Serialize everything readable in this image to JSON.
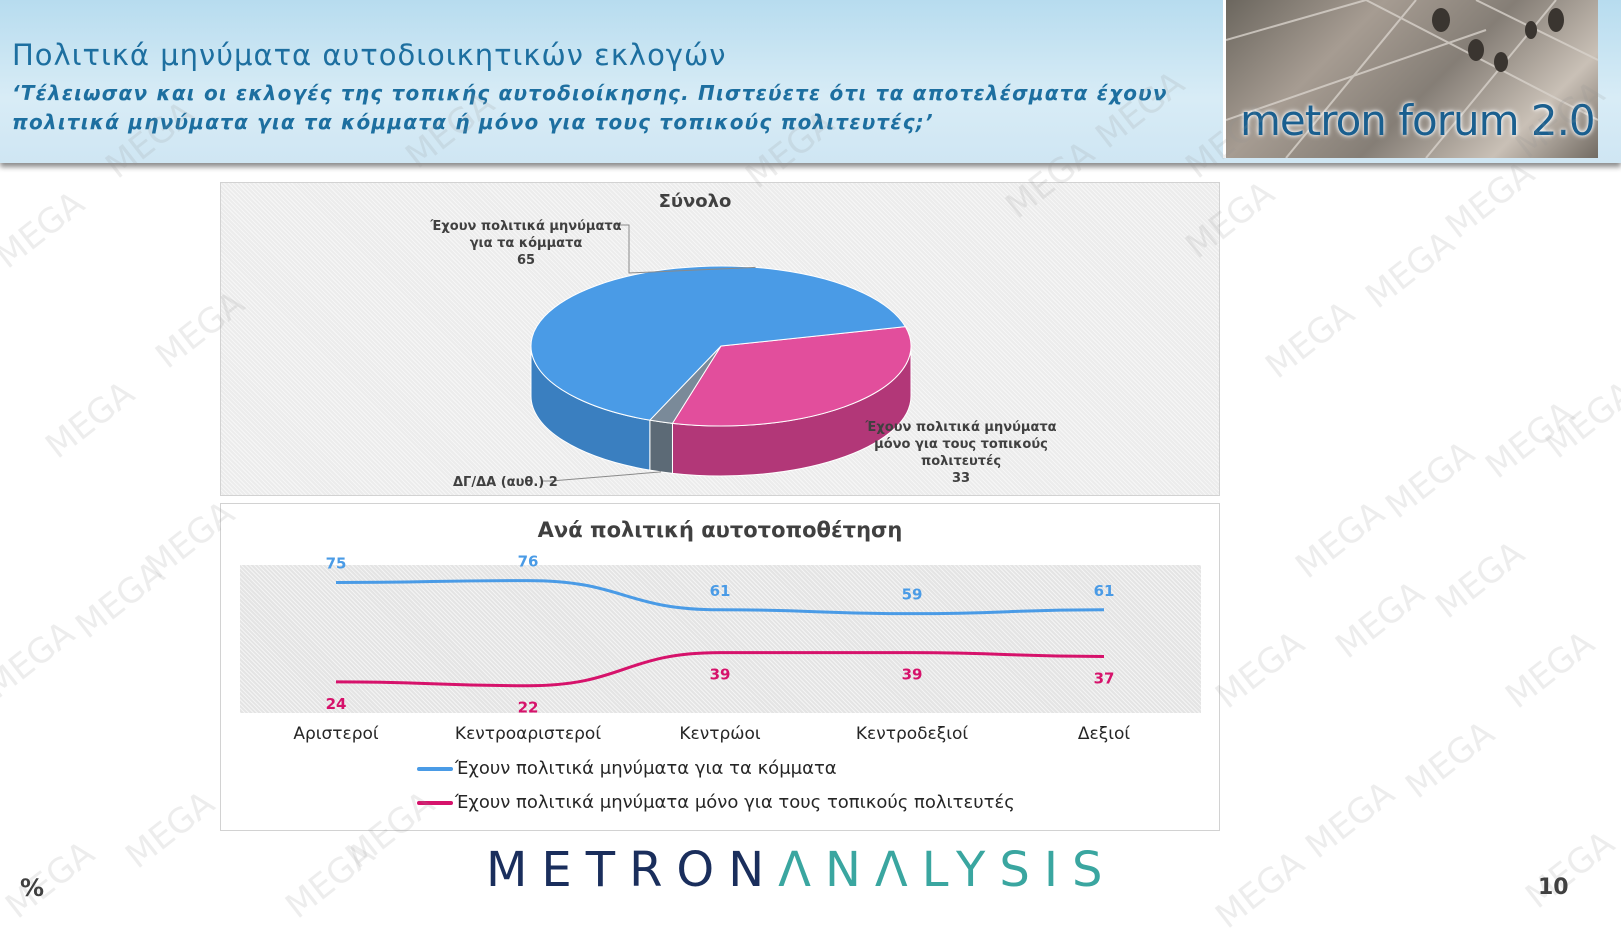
{
  "header": {
    "title": "Πολιτικά μηνύματα αυτοδιοικητικών εκλογών",
    "question": "‘Τέλειωσαν και οι εκλογές της τοπικής αυτοδιοίκησης. Πιστεύετε ότι τα αποτελέσματα έχουν πολιτικά μηνύματα για τα κόμματα ή μόνο για τους τοπικούς πολιτευτές;’",
    "logo_text": "metron forum 2.0"
  },
  "watermark_text": "MEGA",
  "footer": {
    "brand_part1": "METRON",
    "brand_part2": "ΛNΛLYSIS",
    "unit": "%",
    "page_number": "10"
  },
  "chart_data": [
    {
      "type": "pie",
      "title": "Σύνολο",
      "slices": [
        {
          "label": "Έχουν πολιτικά μηνύματα για τα κόμματα",
          "value": 65,
          "color": "#4a9be6"
        },
        {
          "label": "Έχουν πολιτικά μηνύματα μόνο για τους τοπικούς πολιτευτές",
          "value": 33,
          "color": "#e24e9c"
        },
        {
          "label": "ΔΓ/ΔΑ (αυθ.)",
          "value": 2,
          "color": "#7a8a99"
        }
      ]
    },
    {
      "type": "line",
      "title": "Ανά πολιτική αυτοτοποθέτηση",
      "categories": [
        "Αριστεροί",
        "Κεντροαριστεροί",
        "Κεντρώοι",
        "Κεντροδεξιοί",
        "Δεξιοί"
      ],
      "series": [
        {
          "name": "Έχουν πολιτικά μηνύματα για τα κόμματα",
          "values": [
            75,
            76,
            61,
            59,
            61
          ],
          "color": "#4a9be6"
        },
        {
          "name": "Έχουν πολιτικά μηνύματα μόνο για τους τοπικούς πολιτευτές",
          "values": [
            24,
            22,
            39,
            39,
            37
          ],
          "color": "#d6126b"
        }
      ],
      "legend_position": "bottom",
      "grid": false
    }
  ]
}
